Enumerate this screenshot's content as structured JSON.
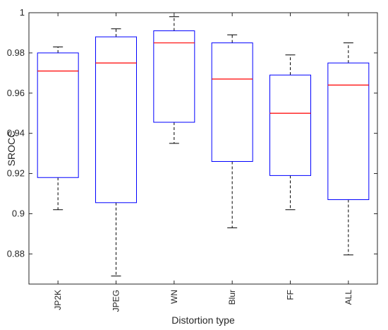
{
  "chart_data": {
    "type": "box",
    "xlabel": "Distortion type",
    "ylabel": "SROCC",
    "ylim": [
      0.865,
      1.0
    ],
    "yticks": [
      0.88,
      0.9,
      0.92,
      0.94,
      0.96,
      0.98,
      1
    ],
    "ytick_labels": [
      "0.88",
      "0.9",
      "0.92",
      "0.94",
      "0.96",
      "0.98",
      "1"
    ],
    "categories": [
      "JP2K",
      "JPEG",
      "WN",
      "Blur",
      "FF",
      "ALL"
    ],
    "boxes": [
      {
        "label": "JP2K",
        "whisker_low": 0.902,
        "q1": 0.918,
        "median": 0.971,
        "q3": 0.98,
        "whisker_high": 0.983
      },
      {
        "label": "JPEG",
        "whisker_low": 0.869,
        "q1": 0.9055,
        "median": 0.975,
        "q3": 0.988,
        "whisker_high": 0.992
      },
      {
        "label": "WN",
        "whisker_low": 0.935,
        "q1": 0.9455,
        "median": 0.985,
        "q3": 0.991,
        "whisker_high": 0.998
      },
      {
        "label": "Blur",
        "whisker_low": 0.893,
        "q1": 0.926,
        "median": 0.967,
        "q3": 0.985,
        "whisker_high": 0.989
      },
      {
        "label": "FF",
        "whisker_low": 0.902,
        "q1": 0.919,
        "median": 0.95,
        "q3": 0.969,
        "whisker_high": 0.979
      },
      {
        "label": "ALL",
        "whisker_low": 0.8795,
        "q1": 0.907,
        "median": 0.964,
        "q3": 0.975,
        "whisker_high": 0.985
      }
    ],
    "colors": {
      "box": "#0000ff",
      "median": "#ff0000",
      "whisker": "#000000",
      "axes": "#262626"
    }
  }
}
